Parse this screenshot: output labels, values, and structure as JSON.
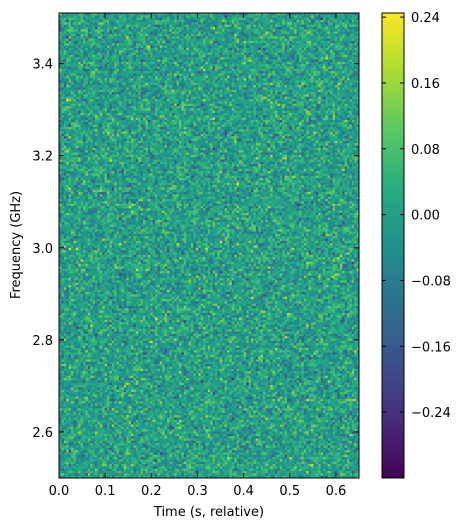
{
  "chart_data": {
    "type": "heatmap",
    "title": "",
    "xlabel": "Time (s, relative)",
    "ylabel": "Frequency (GHz)",
    "xlim": [
      0.0,
      0.65
    ],
    "ylim": [
      2.5,
      3.51
    ],
    "x_ticks": [
      "0.0",
      "0.1",
      "0.2",
      "0.3",
      "0.4",
      "0.5",
      "0.6"
    ],
    "y_ticks": [
      "2.6",
      "2.8",
      "3.0",
      "3.2",
      "3.4"
    ],
    "grid": false,
    "colormap": "viridis",
    "color_range": [
      -0.32,
      0.245
    ],
    "colorbar_ticks": [
      "0.24",
      "0.16",
      "0.08",
      "0.00",
      "−0.08",
      "−0.16",
      "−0.24"
    ],
    "value_distribution": {
      "mean": 0.0,
      "std": 0.06
    },
    "grid_size": {
      "time_bins": 125,
      "frequency_bins": 200
    },
    "note": ""
  }
}
